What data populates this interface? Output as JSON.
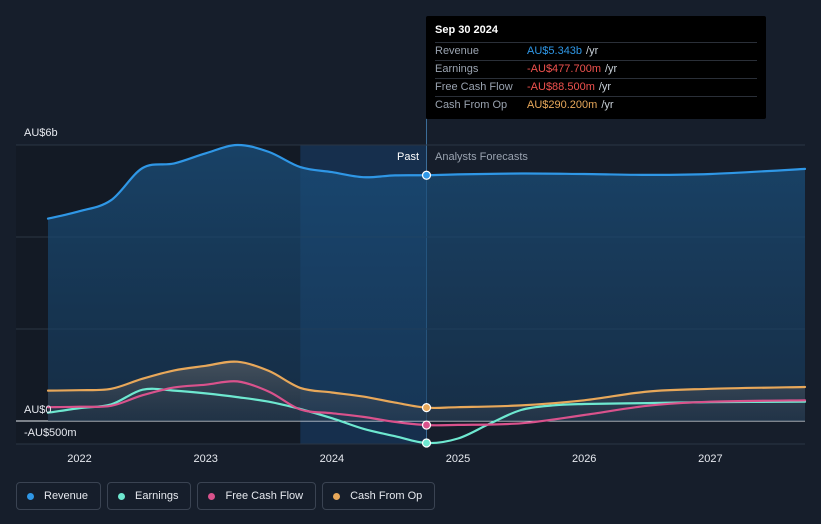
{
  "tooltip": {
    "date": "Sep 30 2024",
    "rows": [
      {
        "label": "Revenue",
        "value": "AU$5.343b",
        "unit": "/yr",
        "color": "#2f97e6"
      },
      {
        "label": "Earnings",
        "value": "-AU$477.700m",
        "unit": "/yr",
        "color": "#f0524e"
      },
      {
        "label": "Free Cash Flow",
        "value": "-AU$88.500m",
        "unit": "/yr",
        "color": "#f0524e"
      },
      {
        "label": "Cash From Op",
        "value": "AU$290.200m",
        "unit": "/yr",
        "color": "#e8a85a"
      }
    ]
  },
  "zones": {
    "past_label": "Past",
    "forecast_label": "Analysts Forecasts"
  },
  "legend": [
    {
      "label": "Revenue",
      "color": "#2f97e6"
    },
    {
      "label": "Earnings",
      "color": "#6ee8d0"
    },
    {
      "label": "Free Cash Flow",
      "color": "#d9528c"
    },
    {
      "label": "Cash From Op",
      "color": "#e8a85a"
    }
  ],
  "chart_data": {
    "type": "line",
    "y_unit_label_top": "AU$6b",
    "y_unit_label_zero": "AU$0",
    "y_unit_label_bottom": "-AU$500m",
    "ylim": [
      -500,
      6000
    ],
    "xlim": [
      2021.75,
      2027.75
    ],
    "x_ticks": [
      "2022",
      "2023",
      "2024",
      "2025",
      "2026",
      "2027"
    ],
    "x_tick_values": [
      2022,
      2023,
      2024,
      2025,
      2026,
      2027
    ],
    "past_forecast_split": 2024.75,
    "highlight_start": 2023.75,
    "series": [
      {
        "name": "Revenue",
        "color": "#2f97e6",
        "points": [
          [
            2021.75,
            4400
          ],
          [
            2022.0,
            4560
          ],
          [
            2022.25,
            4800
          ],
          [
            2022.5,
            5500
          ],
          [
            2022.75,
            5600
          ],
          [
            2023.0,
            5820
          ],
          [
            2023.25,
            6000
          ],
          [
            2023.5,
            5850
          ],
          [
            2023.75,
            5520
          ],
          [
            2024.0,
            5410
          ],
          [
            2024.25,
            5300
          ],
          [
            2024.5,
            5340
          ],
          [
            2024.75,
            5343
          ],
          [
            2025.0,
            5360
          ],
          [
            2025.5,
            5380
          ],
          [
            2026.0,
            5370
          ],
          [
            2026.5,
            5350
          ],
          [
            2027.0,
            5370
          ],
          [
            2027.75,
            5480
          ]
        ]
      },
      {
        "name": "Earnings",
        "color": "#6ee8d0",
        "points": [
          [
            2021.75,
            180
          ],
          [
            2022.0,
            280
          ],
          [
            2022.25,
            360
          ],
          [
            2022.5,
            680
          ],
          [
            2022.75,
            660
          ],
          [
            2023.0,
            600
          ],
          [
            2023.25,
            520
          ],
          [
            2023.5,
            420
          ],
          [
            2023.75,
            260
          ],
          [
            2024.0,
            60
          ],
          [
            2024.25,
            -170
          ],
          [
            2024.5,
            -330
          ],
          [
            2024.75,
            -477.7
          ],
          [
            2025.0,
            -380
          ],
          [
            2025.25,
            -60
          ],
          [
            2025.5,
            240
          ],
          [
            2025.75,
            340
          ],
          [
            2026.0,
            370
          ],
          [
            2026.5,
            390
          ],
          [
            2027.0,
            410
          ],
          [
            2027.75,
            420
          ]
        ]
      },
      {
        "name": "Free Cash Flow",
        "color": "#d9528c",
        "points": [
          [
            2021.75,
            300
          ],
          [
            2022.0,
            310
          ],
          [
            2022.25,
            330
          ],
          [
            2022.5,
            560
          ],
          [
            2022.75,
            730
          ],
          [
            2023.0,
            790
          ],
          [
            2023.25,
            860
          ],
          [
            2023.5,
            640
          ],
          [
            2023.75,
            250
          ],
          [
            2024.0,
            170
          ],
          [
            2024.25,
            90
          ],
          [
            2024.5,
            -20
          ],
          [
            2024.75,
            -88.5
          ],
          [
            2025.0,
            -85
          ],
          [
            2025.5,
            -50
          ],
          [
            2026.0,
            130
          ],
          [
            2026.5,
            330
          ],
          [
            2027.0,
            420
          ],
          [
            2027.75,
            450
          ]
        ]
      },
      {
        "name": "Cash From Op",
        "color": "#e8a85a",
        "points": [
          [
            2021.75,
            660
          ],
          [
            2022.0,
            670
          ],
          [
            2022.25,
            700
          ],
          [
            2022.5,
            920
          ],
          [
            2022.75,
            1100
          ],
          [
            2023.0,
            1200
          ],
          [
            2023.25,
            1290
          ],
          [
            2023.5,
            1090
          ],
          [
            2023.75,
            720
          ],
          [
            2024.0,
            620
          ],
          [
            2024.25,
            530
          ],
          [
            2024.5,
            400
          ],
          [
            2024.75,
            290.2
          ],
          [
            2025.0,
            300
          ],
          [
            2025.5,
            340
          ],
          [
            2026.0,
            450
          ],
          [
            2026.5,
            640
          ],
          [
            2027.0,
            700
          ],
          [
            2027.75,
            740
          ]
        ]
      }
    ]
  }
}
